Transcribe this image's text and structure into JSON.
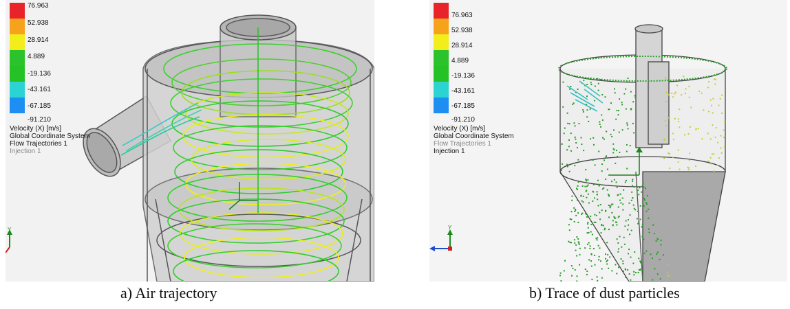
{
  "legend": {
    "values": [
      "76.963",
      "52.938",
      "28.914",
      "4.889",
      "-19.136",
      "-43.161",
      "-67.185",
      "-91.210"
    ],
    "colors": [
      "#e8242a",
      "#f6a21b",
      "#f1ee1c",
      "#2cc22c",
      "#25c225",
      "#2bd3d3",
      "#1d8ff2",
      "#1414e8"
    ],
    "parameter": "Velocity (X) [m/s]",
    "coordinate_system": "Global Coordinate System",
    "trajectories": "Flow Trajectories 1",
    "injection": "Injection 1"
  },
  "panels": {
    "a": {
      "caption": "a) Air trajectory"
    },
    "b": {
      "caption": "b) Trace of dust particles"
    }
  },
  "axis_labels": {
    "x": "X",
    "y": "Y",
    "z": "Z"
  }
}
